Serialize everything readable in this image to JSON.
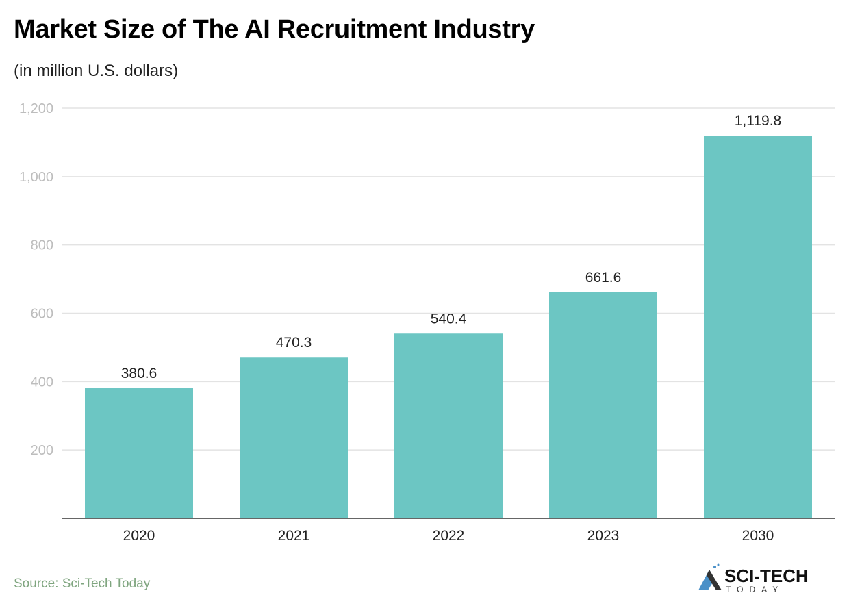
{
  "title": "Market Size of The AI Recruitment Industry",
  "subtitle": "(in million U.S. dollars)",
  "source": "Source: Sci-Tech Today",
  "logo": {
    "text": "SCI-TECH",
    "subtext": "TODAY"
  },
  "colors": {
    "bar": "#6cc6c3",
    "grid": "#e3e3e3",
    "axis": "#333333",
    "source": "#7fa57f",
    "logo_blue": "#4a90c8"
  },
  "chart_data": {
    "type": "bar",
    "title": "Market Size of The AI Recruitment Industry",
    "subtitle": "(in million U.S. dollars)",
    "categories": [
      "2020",
      "2021",
      "2022",
      "2023",
      "2030"
    ],
    "values": [
      380.6,
      470.3,
      540.4,
      661.6,
      1119.8
    ],
    "value_labels": [
      "380.6",
      "470.3",
      "540.4",
      "661.6",
      "1,119.8"
    ],
    "ylim": [
      0,
      1200
    ],
    "yticks": [
      200,
      400,
      600,
      800,
      1000,
      1200
    ],
    "ytick_labels": [
      "200",
      "400",
      "600",
      "800",
      "1,000",
      "1,200"
    ],
    "grid": true,
    "legend": "none"
  }
}
